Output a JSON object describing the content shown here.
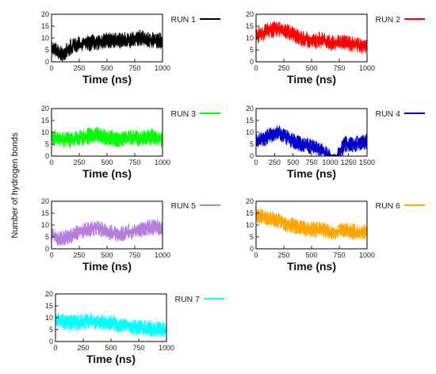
{
  "figure": {
    "ylabel": "Number of hydrogen bonds"
  },
  "chart_data": [
    {
      "type": "area",
      "series": [
        {
          "name": "RUN 1"
        }
      ],
      "color": "#000000",
      "xlabel": "Time (ns)",
      "xlim": [
        0,
        1000
      ],
      "ylim": [
        0,
        20
      ],
      "x_ticks": [
        0,
        250,
        500,
        750,
        1000
      ],
      "y_ticks": [
        0,
        5,
        10,
        15,
        20
      ],
      "grid": false,
      "legend_position": "right",
      "x": [
        0,
        100,
        200,
        300,
        400,
        500,
        600,
        700,
        800,
        900,
        1000
      ],
      "y": [
        6,
        3,
        7,
        8,
        8,
        9,
        9,
        9,
        10,
        9,
        9
      ]
    },
    {
      "type": "area",
      "series": [
        {
          "name": "RUN 2"
        }
      ],
      "color": "#ff0000",
      "xlabel": "Time (ns)",
      "xlim": [
        0,
        1000
      ],
      "ylim": [
        0,
        20
      ],
      "x_ticks": [
        0,
        250,
        500,
        750,
        1000
      ],
      "y_ticks": [
        0,
        5,
        10,
        15,
        20
      ],
      "grid": false,
      "legend_position": "right",
      "x": [
        0,
        100,
        200,
        300,
        400,
        500,
        600,
        700,
        800,
        900,
        1000
      ],
      "y": [
        11,
        13,
        14,
        12,
        10,
        9,
        9,
        8,
        8,
        7,
        6
      ]
    },
    {
      "type": "area",
      "series": [
        {
          "name": "RUN 3"
        }
      ],
      "color": "#00ff00",
      "xlabel": "Time (ns)",
      "xlim": [
        0,
        1000
      ],
      "ylim": [
        0,
        20
      ],
      "x_ticks": [
        0,
        250,
        500,
        750,
        1000
      ],
      "y_ticks": [
        0,
        5,
        10,
        15,
        20
      ],
      "grid": false,
      "legend_position": "right",
      "x": [
        0,
        100,
        200,
        300,
        400,
        500,
        600,
        700,
        800,
        900,
        1000
      ],
      "y": [
        8,
        7,
        7,
        8,
        9,
        8,
        7,
        8,
        7,
        8,
        7
      ]
    },
    {
      "type": "area",
      "series": [
        {
          "name": "RUN 4"
        }
      ],
      "color": "#0000cc",
      "xlabel": "Time (ns)",
      "xlim": [
        0,
        1500
      ],
      "ylim": [
        0,
        20
      ],
      "x_ticks": [
        0,
        250,
        500,
        750,
        1000,
        1250,
        1500
      ],
      "y_ticks": [
        0,
        5,
        10,
        15,
        20
      ],
      "grid": false,
      "legend_position": "right",
      "x": [
        0,
        150,
        300,
        450,
        600,
        750,
        900,
        1000,
        1100,
        1200,
        1350,
        1500
      ],
      "y": [
        6,
        8,
        10,
        7,
        5,
        4,
        2,
        0,
        0,
        5,
        5,
        6
      ]
    },
    {
      "type": "area",
      "series": [
        {
          "name": "RUN 5"
        }
      ],
      "color": "#b57edc",
      "xlabel": "Time (ns)",
      "xlim": [
        0,
        1000
      ],
      "ylim": [
        0,
        20
      ],
      "x_ticks": [
        0,
        250,
        500,
        750,
        1000
      ],
      "y_ticks": [
        0,
        5,
        10,
        15,
        20
      ],
      "grid": false,
      "legend_position": "right",
      "x": [
        0,
        100,
        200,
        300,
        400,
        500,
        600,
        700,
        800,
        900,
        1000
      ],
      "y": [
        6,
        4,
        6,
        8,
        9,
        7,
        6,
        7,
        8,
        9,
        9
      ]
    },
    {
      "type": "area",
      "series": [
        {
          "name": "RUN 6"
        }
      ],
      "color": "#ffa500",
      "xlabel": "Time (ns)",
      "xlim": [
        0,
        1000
      ],
      "ylim": [
        0,
        20
      ],
      "x_ticks": [
        0,
        250,
        500,
        750,
        1000
      ],
      "y_ticks": [
        0,
        5,
        10,
        15,
        20
      ],
      "grid": false,
      "legend_position": "right",
      "x": [
        0,
        100,
        200,
        300,
        400,
        500,
        600,
        700,
        800,
        900,
        1000
      ],
      "y": [
        14,
        13,
        12,
        10,
        9,
        8,
        8,
        7,
        8,
        7,
        7
      ]
    },
    {
      "type": "area",
      "series": [
        {
          "name": "RUN 7"
        }
      ],
      "color": "#00ffff",
      "xlabel": "Time (ns)",
      "xlim": [
        0,
        1000
      ],
      "ylim": [
        0,
        20
      ],
      "x_ticks": [
        0,
        250,
        500,
        750,
        1000
      ],
      "y_ticks": [
        0,
        5,
        10,
        15,
        20
      ],
      "grid": false,
      "legend_position": "right",
      "x": [
        0,
        100,
        200,
        300,
        400,
        500,
        600,
        700,
        800,
        900,
        1000
      ],
      "y": [
        9,
        8,
        8,
        9,
        8,
        8,
        7,
        6,
        6,
        5,
        5
      ]
    }
  ]
}
